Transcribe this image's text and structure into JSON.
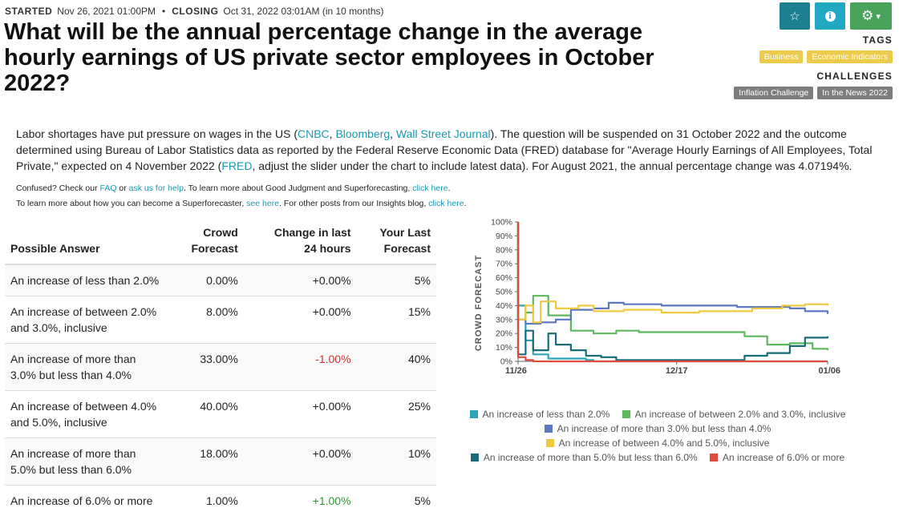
{
  "meta": {
    "started_label": "STARTED",
    "started": "Nov 26, 2021 01:00PM",
    "separator": "•",
    "closing_label": "CLOSING",
    "closing": "Oct 31, 2022 03:01AM (in 10 months)"
  },
  "title": "What will be the annual percentage change in the average hourly earnings of US private sector employees in October 2022?",
  "buttons": {
    "star_icon": "star-icon",
    "info_icon": "info-icon",
    "gear_icon": "gear-icon",
    "caret": "▾"
  },
  "tags": {
    "heading": "TAGS",
    "items": [
      "Business",
      "Economic Indicators"
    ]
  },
  "challenges": {
    "heading": "CHALLENGES",
    "items": [
      "Inflation Challenge",
      "In the News 2022"
    ]
  },
  "description": {
    "p1": "Labor shortages have put pressure on wages in the US (",
    "cnbc": "CNBC",
    "comma1": ", ",
    "bloomberg": "Bloomberg",
    "comma2": ", ",
    "wsj": "Wall Street Journal",
    "p2": "). The question will be suspended on 31 October 2022 and the outcome determined using Bureau of Labor Statistics data as reported by the Federal Reserve Economic Data (FRED) database for \"Average Hourly Earnings of All Employees, Total Private,\" expected on 4 November 2022 (",
    "fred": "FRED",
    "p3": ", adjust the slider under the chart to include latest data). For August 2021, the annual percentage change was 4.07194%."
  },
  "help": {
    "a1": "Confused? Check our ",
    "faq": "FAQ",
    "a2": " or ",
    "ask": "ask us for help",
    "a3": ". To learn more about Good Judgment and Superforecasting, ",
    "click1": "click here",
    "a4": ".",
    "b1": "To learn more about how you can become a Superforecaster, ",
    "see": "see here",
    "b2": ". For other posts from our Insights blog, ",
    "click2": "click here",
    "b3": "."
  },
  "table": {
    "headers": {
      "answer": "Possible Answer",
      "crowd_1": "Crowd",
      "crowd_2": "Forecast",
      "change_1": "Change in last",
      "change_2": "24 hours",
      "last_1": "Your Last",
      "last_2": "Forecast"
    },
    "rows": [
      {
        "answer": "An increase of less than 2.0%",
        "crowd": "0.00%",
        "change": "+0.00%",
        "last": "5%"
      },
      {
        "answer": "An increase of between 2.0% and 3.0%, inclusive",
        "crowd": "8.00%",
        "change": "+0.00%",
        "last": "15%"
      },
      {
        "answer": "An increase of more than 3.0% but less than 4.0%",
        "crowd": "33.00%",
        "change": "-1.00%",
        "last": "40%"
      },
      {
        "answer": "An increase of between 4.0% and 5.0%, inclusive",
        "crowd": "40.00%",
        "change": "+0.00%",
        "last": "25%"
      },
      {
        "answer": "An increase of more than 5.0% but less than 6.0%",
        "crowd": "18.00%",
        "change": "+0.00%",
        "last": "10%"
      },
      {
        "answer": "An increase of 6.0% or more",
        "crowd": "1.00%",
        "change": "+1.00%",
        "last": "5%"
      }
    ]
  },
  "chart_data": {
    "type": "line",
    "title": "",
    "ylabel": "CROWD FORECAST",
    "xlabel": "",
    "ylim": [
      0,
      100
    ],
    "yticks": [
      "0%",
      "10%",
      "20%",
      "30%",
      "40%",
      "50%",
      "60%",
      "70%",
      "80%",
      "90%",
      "100%"
    ],
    "xlim": [
      "2021-11-26",
      "2022-01-06"
    ],
    "xticks": [
      {
        "date": "2021-11-26",
        "label": "11/26"
      },
      {
        "date": "2021-12-17",
        "label": "12/17"
      },
      {
        "date": "2022-01-06",
        "label": "01/06"
      }
    ],
    "grid": false,
    "legend_position": "bottom",
    "series": [
      {
        "name": "An increase of less than 2.0%",
        "color": "#2aa6b7",
        "points": [
          [
            "2021-11-26",
            100
          ],
          [
            "2021-11-26",
            40
          ],
          [
            "2021-11-27",
            15
          ],
          [
            "2021-11-28",
            5
          ],
          [
            "2021-11-30",
            2
          ],
          [
            "2021-12-05",
            1
          ],
          [
            "2021-12-06",
            0
          ],
          [
            "2022-01-06",
            0
          ]
        ]
      },
      {
        "name": "An increase of between 2.0% and 3.0%, inclusive",
        "color": "#5cb85c",
        "points": [
          [
            "2021-11-26",
            100
          ],
          [
            "2021-11-26",
            30
          ],
          [
            "2021-11-27",
            35
          ],
          [
            "2021-11-28",
            47
          ],
          [
            "2021-11-30",
            33
          ],
          [
            "2021-12-03",
            22
          ],
          [
            "2021-12-06",
            20
          ],
          [
            "2021-12-09",
            22
          ],
          [
            "2021-12-12",
            21
          ],
          [
            "2021-12-18",
            21
          ],
          [
            "2021-12-26",
            18
          ],
          [
            "2021-12-29",
            12
          ],
          [
            "2022-01-01",
            13
          ],
          [
            "2022-01-04",
            9
          ],
          [
            "2022-01-06",
            8
          ]
        ]
      },
      {
        "name": "An increase of more than 3.0% but less than 4.0%",
        "color": "#5a78c0",
        "points": [
          [
            "2021-11-26",
            100
          ],
          [
            "2021-11-26",
            30
          ],
          [
            "2021-11-27",
            27
          ],
          [
            "2021-11-29",
            28
          ],
          [
            "2021-12-01",
            30
          ],
          [
            "2021-12-03",
            37
          ],
          [
            "2021-12-06",
            38
          ],
          [
            "2021-12-08",
            42
          ],
          [
            "2021-12-10",
            41
          ],
          [
            "2021-12-15",
            40
          ],
          [
            "2021-12-25",
            39
          ],
          [
            "2022-01-01",
            38
          ],
          [
            "2022-01-03",
            36
          ],
          [
            "2022-01-06",
            34
          ]
        ]
      },
      {
        "name": "An increase of between 4.0% and 5.0%, inclusive",
        "color": "#f0c93e",
        "points": [
          [
            "2021-11-26",
            100
          ],
          [
            "2021-11-26",
            30
          ],
          [
            "2021-11-27",
            40
          ],
          [
            "2021-11-28",
            28
          ],
          [
            "2021-11-29",
            43
          ],
          [
            "2021-12-01",
            38
          ],
          [
            "2021-12-04",
            40
          ],
          [
            "2021-12-06",
            36
          ],
          [
            "2021-12-10",
            37
          ],
          [
            "2021-12-15",
            35
          ],
          [
            "2021-12-20",
            36
          ],
          [
            "2021-12-27",
            38
          ],
          [
            "2021-12-31",
            40
          ],
          [
            "2022-01-03",
            41
          ],
          [
            "2022-01-06",
            40
          ]
        ]
      },
      {
        "name": "An increase of more than 5.0% but less than 6.0%",
        "color": "#1a6b78",
        "points": [
          [
            "2021-11-26",
            100
          ],
          [
            "2021-11-26",
            5
          ],
          [
            "2021-11-27",
            22
          ],
          [
            "2021-11-28",
            8
          ],
          [
            "2021-11-30",
            20
          ],
          [
            "2021-12-01",
            12
          ],
          [
            "2021-12-03",
            8
          ],
          [
            "2021-12-05",
            4
          ],
          [
            "2021-12-07",
            3
          ],
          [
            "2021-12-09",
            1
          ],
          [
            "2021-12-15",
            1
          ],
          [
            "2021-12-24",
            1
          ],
          [
            "2021-12-26",
            4
          ],
          [
            "2021-12-29",
            6
          ],
          [
            "2022-01-01",
            11
          ],
          [
            "2022-01-03",
            17
          ],
          [
            "2022-01-06",
            18
          ]
        ]
      },
      {
        "name": "An increase of 6.0% or more",
        "color": "#e04a3f",
        "points": [
          [
            "2021-11-26",
            100
          ],
          [
            "2021-11-26",
            3
          ],
          [
            "2021-11-27",
            1
          ],
          [
            "2021-11-28",
            0
          ],
          [
            "2022-01-06",
            0
          ]
        ]
      }
    ]
  }
}
